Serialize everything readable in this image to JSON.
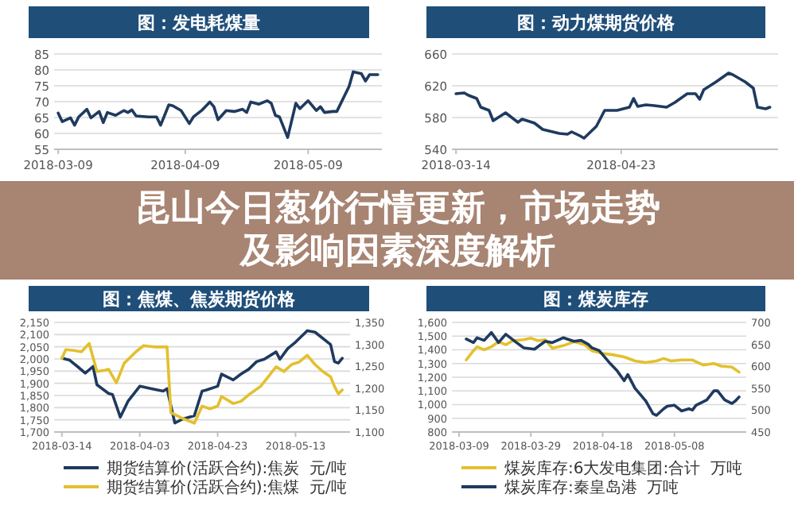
{
  "chart_data": [
    {
      "type": "line",
      "title": "图：发电耗煤量",
      "xlim": [
        "2018-03-08",
        "2018-05-27"
      ],
      "xticks": [
        "2018-03-09",
        "2018-04-09",
        "2018-05-09"
      ],
      "ylim": [
        55,
        85
      ],
      "yticks": [
        55,
        60,
        65,
        70,
        75,
        80,
        85
      ],
      "grid": "y",
      "series": [
        {
          "color": "#1f3a5f",
          "x": [
            "2018-03-09",
            "2018-03-10",
            "2018-03-12",
            "2018-03-13",
            "2018-03-14",
            "2018-03-16",
            "2018-03-17",
            "2018-03-19",
            "2018-03-20",
            "2018-03-21",
            "2018-03-23",
            "2018-03-25",
            "2018-03-26",
            "2018-03-27",
            "2018-03-28",
            "2018-03-31",
            "2018-04-02",
            "2018-04-03",
            "2018-04-05",
            "2018-04-06",
            "2018-04-08",
            "2018-04-10",
            "2018-04-11",
            "2018-04-13",
            "2018-04-15",
            "2018-04-16",
            "2018-04-17",
            "2018-04-19",
            "2018-04-21",
            "2018-04-23",
            "2018-04-24",
            "2018-04-25",
            "2018-04-27",
            "2018-04-29",
            "2018-04-30",
            "2018-05-01",
            "2018-05-02",
            "2018-05-04",
            "2018-05-06",
            "2018-05-07",
            "2018-05-09",
            "2018-05-11",
            "2018-05-12",
            "2018-05-13",
            "2018-05-15",
            "2018-05-16",
            "2018-05-19",
            "2018-05-20",
            "2018-05-22",
            "2018-05-23",
            "2018-05-24",
            "2018-05-26"
          ],
          "values": [
            66.4,
            63.7,
            64.9,
            62.6,
            65.2,
            67.6,
            64.9,
            66.9,
            63.4,
            66.6,
            65.7,
            67.2,
            66.6,
            67.4,
            65.5,
            65.2,
            65.2,
            62.6,
            69.0,
            68.7,
            67.2,
            63.1,
            65.2,
            67.2,
            69.9,
            68.4,
            64.3,
            67.2,
            66.9,
            67.6,
            66.6,
            69.9,
            69.2,
            70.3,
            69.5,
            65.7,
            65.2,
            58.7,
            69.5,
            67.8,
            70.3,
            67.2,
            68.4,
            66.6,
            66.9,
            66.9,
            74.8,
            79.4,
            78.8,
            76.5,
            78.5,
            78.5
          ]
        }
      ]
    },
    {
      "type": "line",
      "title": "图：动力煤期货价格",
      "xlim": [
        "2018-03-13",
        "2018-05-31"
      ],
      "xticks": [
        "2018-03-14",
        "2018-04-23"
      ],
      "ylim": [
        540,
        660
      ],
      "yticks": [
        540,
        580,
        620,
        660
      ],
      "grid": "y",
      "series": [
        {
          "color": "#1f3a5f",
          "x": [
            "2018-03-14",
            "2018-03-16",
            "2018-03-17",
            "2018-03-19",
            "2018-03-20",
            "2018-03-22",
            "2018-03-23",
            "2018-03-26",
            "2018-03-29",
            "2018-03-30",
            "2018-04-02",
            "2018-04-04",
            "2018-04-08",
            "2018-04-10",
            "2018-04-11",
            "2018-04-13",
            "2018-04-14",
            "2018-04-17",
            "2018-04-19",
            "2018-04-22",
            "2018-04-25",
            "2018-04-26",
            "2018-04-27",
            "2018-04-29",
            "2018-05-01",
            "2018-05-04",
            "2018-05-06",
            "2018-05-09",
            "2018-05-11",
            "2018-05-12",
            "2018-05-13",
            "2018-05-16",
            "2018-05-19",
            "2018-05-20",
            "2018-05-23",
            "2018-05-25",
            "2018-05-26",
            "2018-05-28",
            "2018-05-29"
          ],
          "values": [
            610,
            611,
            608,
            604,
            593,
            589,
            576,
            586,
            574,
            578,
            573,
            565,
            560,
            559,
            562,
            557,
            554,
            569,
            589,
            589,
            593,
            604,
            594,
            596,
            595,
            593,
            599,
            610,
            610,
            603,
            615,
            625,
            636,
            634,
            625,
            617,
            593,
            591,
            593
          ]
        }
      ]
    },
    {
      "type": "other",
      "title": "昆山今日葱价行情更新，市场走势及影响因素深度解析"
    },
    {
      "type": "line",
      "title": "图：焦煤、焦炭期货价格",
      "xlim": [
        "2018-03-12",
        "2018-05-27"
      ],
      "xticks": [
        "2018-03-14",
        "2018-04-03",
        "2018-04-23",
        "2018-05-13"
      ],
      "ylim": [
        1700,
        2150
      ],
      "yticks": [
        {
          "value": 1700,
          "label": "1,700"
        },
        {
          "value": 1750,
          "label": "1,750"
        },
        {
          "value": 1800,
          "label": "1,800"
        },
        {
          "value": 1850,
          "label": "1,850"
        },
        {
          "value": 1900,
          "label": "1,900"
        },
        {
          "value": 1950,
          "label": "1,950"
        },
        {
          "value": 2000,
          "label": "2,000"
        },
        {
          "value": 2050,
          "label": "2,050"
        },
        {
          "value": 2100,
          "label": "2,100"
        },
        {
          "value": 2150,
          "label": "2,150"
        }
      ],
      "y2lim": [
        1100,
        1350
      ],
      "y2ticks": [
        {
          "value": 1100,
          "label": "1,100"
        },
        {
          "value": 1150,
          "label": "1,150"
        },
        {
          "value": 1200,
          "label": "1,200"
        },
        {
          "value": 1250,
          "label": "1,250"
        },
        {
          "value": 1300,
          "label": "1,300"
        },
        {
          "value": 1350,
          "label": "1,350"
        }
      ],
      "grid": "y",
      "legend": "bottom",
      "series": [
        {
          "name": "期货结算价(活跃合约):焦炭  元/吨",
          "color": "#1f3a5f",
          "x": [
            "2018-03-14",
            "2018-03-16",
            "2018-03-18",
            "2018-03-20",
            "2018-03-22",
            "2018-03-23",
            "2018-03-26",
            "2018-03-27",
            "2018-03-29",
            "2018-03-31",
            "2018-04-03",
            "2018-04-06",
            "2018-04-09",
            "2018-04-10",
            "2018-04-12",
            "2018-04-14",
            "2018-04-17",
            "2018-04-19",
            "2018-04-20",
            "2018-04-23",
            "2018-04-24",
            "2018-04-27",
            "2018-04-29",
            "2018-05-01",
            "2018-05-03",
            "2018-05-05",
            "2018-05-08",
            "2018-05-09",
            "2018-05-11",
            "2018-05-13",
            "2018-05-16",
            "2018-05-18",
            "2018-05-22",
            "2018-05-23",
            "2018-05-24",
            "2018-05-25"
          ],
          "values": [
            2003,
            1995,
            1969,
            1942,
            1969,
            1894,
            1858,
            1854,
            1761,
            1827,
            1888,
            1878,
            1868,
            1878,
            1737,
            1753,
            1767,
            1868,
            1872,
            1888,
            1938,
            1914,
            1938,
            1958,
            1989,
            1999,
            2029,
            1999,
            2043,
            2069,
            2116,
            2110,
            2059,
            1989,
            1983,
            2003
          ]
        },
        {
          "name": "期货结算价(活跃合约):焦煤  元/吨",
          "color": "#e3c02e",
          "axis": "y2",
          "x": [
            "2018-03-14",
            "2018-03-15",
            "2018-03-17",
            "2018-03-19",
            "2018-03-21",
            "2018-03-23",
            "2018-03-25",
            "2018-03-26",
            "2018-03-28",
            "2018-03-30",
            "2018-04-02",
            "2018-04-04",
            "2018-04-07",
            "2018-04-10",
            "2018-04-11",
            "2018-04-14",
            "2018-04-17",
            "2018-04-19",
            "2018-04-21",
            "2018-04-23",
            "2018-04-24",
            "2018-04-27",
            "2018-04-29",
            "2018-05-01",
            "2018-05-04",
            "2018-05-06",
            "2018-05-08",
            "2018-05-10",
            "2018-05-12",
            "2018-05-14",
            "2018-05-16",
            "2018-05-18",
            "2018-05-20",
            "2018-05-22",
            "2018-05-23",
            "2018-05-24",
            "2018-05-25"
          ],
          "values": [
            1268,
            1288,
            1286,
            1283,
            1302,
            1238,
            1241,
            1243,
            1212,
            1257,
            1283,
            1297,
            1294,
            1294,
            1144,
            1131,
            1120,
            1159,
            1153,
            1159,
            1181,
            1165,
            1170,
            1185,
            1204,
            1226,
            1249,
            1238,
            1254,
            1260,
            1275,
            1254,
            1238,
            1226,
            1204,
            1187,
            1196
          ]
        }
      ]
    },
    {
      "type": "line",
      "title": "图：煤炭库存",
      "xlim": [
        "2018-03-07",
        "2018-05-28"
      ],
      "xticks": [
        "2018-03-09",
        "2018-03-29",
        "2018-04-18",
        "2018-05-08"
      ],
      "ylim": [
        800,
        1600
      ],
      "yticks": [
        800,
        900,
        {
          "value": 1000,
          "label": "1,000"
        },
        {
          "value": 1100,
          "label": "1,100"
        },
        {
          "value": 1200,
          "label": "1,200"
        },
        {
          "value": 1300,
          "label": "1,300"
        },
        {
          "value": 1400,
          "label": "1,400"
        },
        {
          "value": 1500,
          "label": "1,500"
        },
        {
          "value": 1600,
          "label": "1,600"
        }
      ],
      "y2lim": [
        450,
        700
      ],
      "y2ticks": [
        450,
        500,
        550,
        600,
        650,
        700
      ],
      "grid": "y",
      "legend": "bottom",
      "series": [
        {
          "name": "煤炭库存:6大发电集团:合计  万吨",
          "color": "#e3c02e",
          "x": [
            "2018-03-11",
            "2018-03-13",
            "2018-03-14",
            "2018-03-16",
            "2018-03-18",
            "2018-03-20",
            "2018-03-22",
            "2018-03-24",
            "2018-03-27",
            "2018-03-29",
            "2018-03-31",
            "2018-04-02",
            "2018-04-04",
            "2018-04-07",
            "2018-04-10",
            "2018-04-13",
            "2018-04-15",
            "2018-04-18",
            "2018-04-21",
            "2018-04-24",
            "2018-04-27",
            "2018-04-30",
            "2018-05-03",
            "2018-05-05",
            "2018-05-07",
            "2018-05-10",
            "2018-05-13",
            "2018-05-16",
            "2018-05-19",
            "2018-05-21",
            "2018-05-24",
            "2018-05-26"
          ],
          "values": [
            1326,
            1393,
            1422,
            1400,
            1422,
            1459,
            1437,
            1467,
            1474,
            1485,
            1467,
            1474,
            1411,
            1430,
            1459,
            1437,
            1393,
            1374,
            1363,
            1348,
            1319,
            1307,
            1319,
            1337,
            1319,
            1326,
            1326,
            1289,
            1300,
            1281,
            1274,
            1237
          ]
        },
        {
          "name": "煤炭库存:秦皇岛港  万吨",
          "color": "#1f3a5f",
          "axis": "y2",
          "x": [
            "2018-03-11",
            "2018-03-13",
            "2018-03-14",
            "2018-03-16",
            "2018-03-18",
            "2018-03-20",
            "2018-03-22",
            "2018-03-25",
            "2018-03-27",
            "2018-03-30",
            "2018-04-02",
            "2018-04-04",
            "2018-04-07",
            "2018-04-10",
            "2018-04-12",
            "2018-04-14",
            "2018-04-15",
            "2018-04-17",
            "2018-04-20",
            "2018-04-22",
            "2018-04-24",
            "2018-04-25",
            "2018-04-27",
            "2018-04-30",
            "2018-05-02",
            "2018-05-03",
            "2018-05-05",
            "2018-05-06",
            "2018-05-08",
            "2018-05-10",
            "2018-05-12",
            "2018-05-13",
            "2018-05-14",
            "2018-05-17",
            "2018-05-19",
            "2018-05-20",
            "2018-05-22",
            "2018-05-24",
            "2018-05-25",
            "2018-05-26"
          ],
          "values": [
            662,
            654,
            665,
            659,
            677,
            654,
            673,
            654,
            642,
            639,
            657,
            654,
            665,
            657,
            659,
            650,
            642,
            636,
            607,
            590,
            567,
            581,
            550,
            521,
            492,
            488,
            503,
            509,
            511,
            498,
            503,
            500,
            511,
            523,
            544,
            544,
            523,
            515,
            521,
            530
          ]
        }
      ]
    }
  ]
}
